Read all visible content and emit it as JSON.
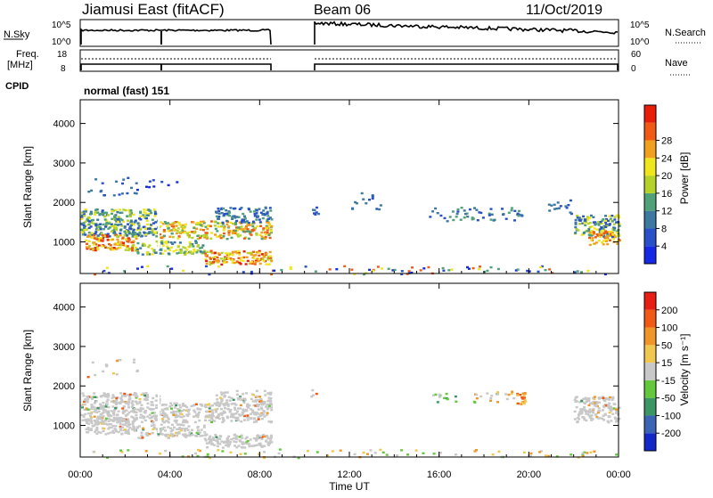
{
  "header": {
    "station": "Jiamusi East (fitACF)",
    "beam": "Beam 06",
    "date": "11/Oct/2019"
  },
  "top_panels": {
    "nsky_label": "N.Sky",
    "nsearch_label": "N.Search",
    "nsky_ticks": [
      "10^5",
      "10^0"
    ],
    "nsearch_ticks": [
      "10^5",
      "10^0"
    ],
    "freq_label": "Freq.",
    "freq_unit": "[MHz]",
    "freq_ticks": [
      "18",
      "8"
    ],
    "nave_label": "Nave",
    "nave_ticks": [
      "60",
      "0"
    ],
    "cpid_label": "CPID",
    "cpid_value": "normal (fast) 151"
  },
  "chart_data": [
    {
      "type": "heatmap",
      "name": "power",
      "ylabel": "Slant Range [km]",
      "yticks": [
        1000,
        2000,
        3000,
        4000
      ],
      "ylim": [
        200,
        4600
      ],
      "colorbar_label": "Power [dB]",
      "colorbar_ticks": [
        4,
        8,
        12,
        16,
        20,
        24,
        28
      ],
      "colorbar_colors": [
        "#1428e6",
        "#2850c8",
        "#3c78a0",
        "#50a078",
        "#b4d228",
        "#f0e61e",
        "#f0a01e",
        "#f05a14",
        "#e61e0a"
      ]
    },
    {
      "type": "heatmap",
      "name": "velocity",
      "ylabel": "Slant Range [km]",
      "yticks": [
        1000,
        2000,
        3000,
        4000
      ],
      "ylim": [
        200,
        4600
      ],
      "colorbar_label": "Velocity [m s⁻¹]",
      "colorbar_ticks": [
        200,
        100,
        50,
        15,
        -15,
        -50,
        -100,
        -200
      ],
      "colorbar_colors": [
        "#1428c8",
        "#3c64b4",
        "#3c9664",
        "#64c83c",
        "#c8c8c8",
        "#f0c850",
        "#f09628",
        "#f05a14",
        "#e61e14"
      ]
    }
  ],
  "xaxis": {
    "label": "Time UT",
    "ticks": [
      "00:00",
      "04:00",
      "08:00",
      "12:00",
      "16:00",
      "20:00",
      "00:00"
    ]
  }
}
